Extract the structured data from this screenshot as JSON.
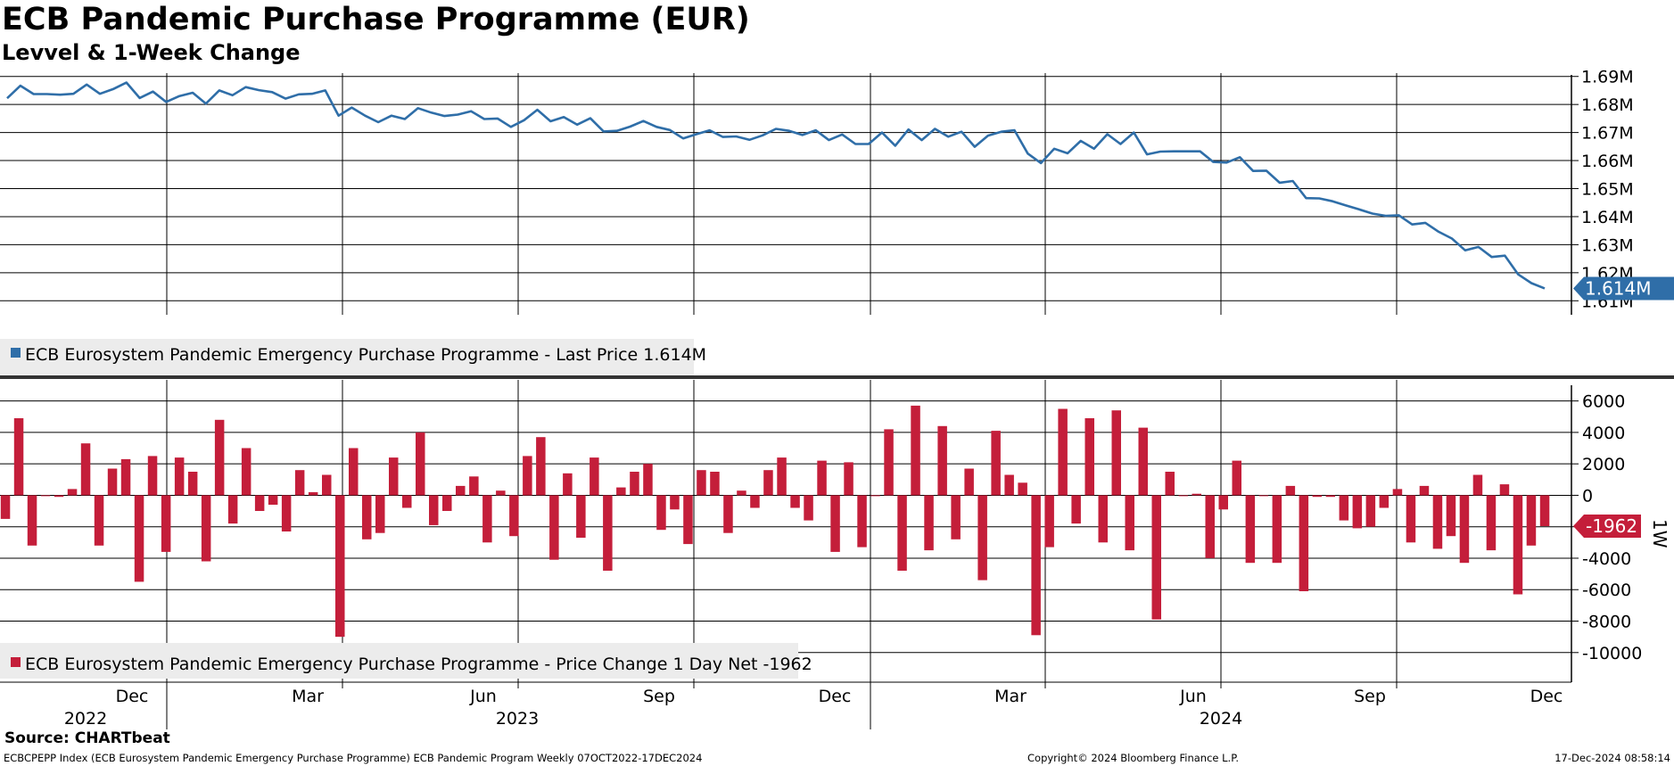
{
  "header": {
    "title": "ECB Pandemic Purchase Programme (EUR)",
    "subtitle": "Levvel & 1-Week Change"
  },
  "footer": {
    "source": "Source: CHARTbeat",
    "left": "ECBCPEPP Index (ECB Eurosystem Pandemic Emergency Purchase Programme) ECB Pandemic Program  Weekly 07OCT2022-17DEC2024",
    "middle": "Copyright© 2024 Bloomberg Finance L.P.",
    "right": "17-Dec-2024 08:58:14"
  },
  "colors": {
    "level": "#2f6ea8",
    "change": "#c41e3a",
    "grid": "#000000"
  },
  "chart_data": [
    {
      "type": "line",
      "title": "ECB Pandemic Purchase Programme (EUR)",
      "legend": "ECB Eurosystem Pandemic Emergency Purchase Programme - Last Price 1.614M",
      "last_label": "1.614M",
      "ylim": [
        1.605,
        1.695
      ],
      "yticks": [
        1.61,
        1.62,
        1.63,
        1.64,
        1.65,
        1.66,
        1.67,
        1.68,
        1.69
      ],
      "ytick_labels": [
        "1.61M",
        "1.62M",
        "1.63M",
        "1.64M",
        "1.65M",
        "1.66M",
        "1.67M",
        "1.68M",
        "1.69M"
      ],
      "values": [
        1.6822,
        1.6867,
        1.6837,
        1.6837,
        1.6835,
        1.6838,
        1.6871,
        1.6838,
        1.6855,
        1.6878,
        1.6823,
        1.6846,
        1.6809,
        1.683,
        1.6842,
        1.6803,
        1.685,
        1.6833,
        1.6862,
        1.6851,
        1.6844,
        1.6821,
        1.6836,
        1.6838,
        1.685,
        1.676,
        1.6789,
        1.676,
        1.6737,
        1.676,
        1.6748,
        1.6787,
        1.6771,
        1.6759,
        1.6764,
        1.6776,
        1.6748,
        1.675,
        1.672,
        1.6744,
        1.6781,
        1.674,
        1.6755,
        1.6728,
        1.6751,
        1.6704,
        1.6706,
        1.6721,
        1.6741,
        1.672,
        1.6709,
        1.6679,
        1.6694,
        1.6708,
        1.6684,
        1.6686,
        1.6674,
        1.669,
        1.6713,
        1.6706,
        1.6691,
        1.6708,
        1.6673,
        1.6693,
        1.6659,
        1.6659,
        1.67,
        1.6653,
        1.6711,
        1.6673,
        1.6713,
        1.6685,
        1.6703,
        1.6649,
        1.6689,
        1.6703,
        1.6708,
        1.6625,
        1.6591,
        1.6642,
        1.6626,
        1.667,
        1.6642,
        1.6694,
        1.6659,
        1.67,
        1.6622,
        1.6632,
        1.6633,
        1.6633,
        1.6633,
        1.6595,
        1.6593,
        1.6612,
        1.6563,
        1.6564,
        1.6521,
        1.6527,
        1.6466,
        1.6465,
        1.6455,
        1.644,
        1.6426,
        1.6411,
        1.6403,
        1.6405,
        1.6372,
        1.6378,
        1.6346,
        1.6322,
        1.628,
        1.6292,
        1.6256,
        1.6261,
        1.6194,
        1.6163,
        1.6144
      ]
    },
    {
      "type": "bar",
      "legend": "ECB Eurosystem Pandemic Emergency Purchase Programme - Price Change 1 Day Net -1962",
      "last_label": "-1962",
      "axis_label": "1W",
      "ylim": [
        -11600,
        7000
      ],
      "yticks": [
        6000,
        4000,
        2000,
        0,
        -2000,
        -4000,
        -6000,
        -8000,
        -10000
      ],
      "values": [
        -1500,
        4900,
        -3200,
        0,
        -100,
        400,
        3300,
        -3200,
        1700,
        2300,
        -5500,
        2500,
        -3600,
        2400,
        1500,
        -4200,
        4800,
        -1800,
        3000,
        -1000,
        -600,
        -2300,
        1600,
        200,
        1300,
        -9000,
        3000,
        -2800,
        -2400,
        2400,
        -800,
        4000,
        -1900,
        -1000,
        600,
        1200,
        -3000,
        300,
        -2600,
        2500,
        3700,
        -4100,
        1400,
        -2700,
        2400,
        -4800,
        500,
        1500,
        2000,
        -2200,
        -900,
        -3100,
        1600,
        1500,
        -2400,
        300,
        -800,
        1600,
        2400,
        -800,
        -1600,
        2200,
        -3600,
        2100,
        -3300,
        0,
        4200,
        -4800,
        5700,
        -3500,
        4400,
        -2800,
        1700,
        -5400,
        4100,
        1300,
        800,
        -8900,
        -3300,
        5500,
        -1800,
        4900,
        -3000,
        5400,
        -3500,
        4300,
        -7900,
        1500,
        0,
        100,
        -4000,
        -900,
        2200,
        -4300,
        0,
        -4300,
        600,
        -6100,
        -100,
        -100,
        -1600,
        -2100,
        -2000,
        -800,
        400,
        -3000,
        600,
        -3400,
        -2600,
        -4300,
        1300,
        -3500,
        700,
        -6300,
        -3200,
        -1962
      ]
    },
    {
      "type": "axis",
      "month_labels": [
        "Dec",
        "Mar",
        "Jun",
        "Sep",
        "Dec",
        "Mar",
        "Jun",
        "Sep",
        "Dec"
      ],
      "year_labels": [
        "2022",
        "2023",
        "2024"
      ]
    }
  ]
}
